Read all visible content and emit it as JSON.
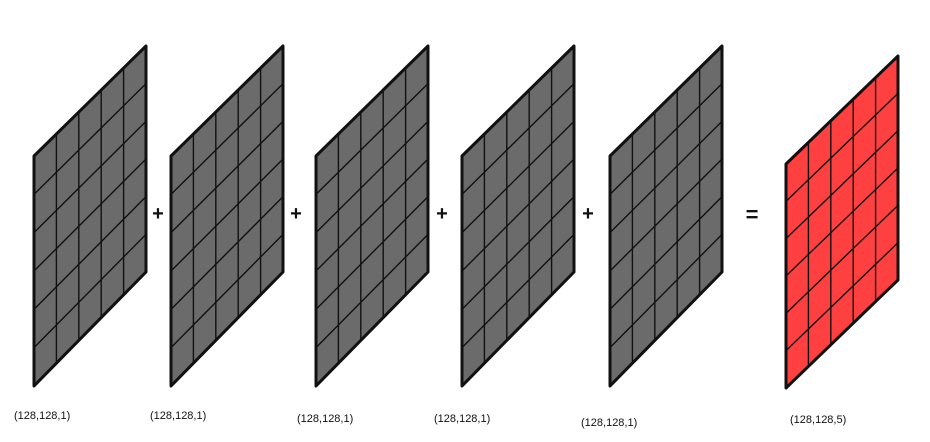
{
  "diagram": {
    "tensors": [
      {
        "shape_label": "(128,128,1)",
        "fill": "#6b6b6b"
      },
      {
        "shape_label": "(128,128,1)",
        "fill": "#6b6b6b"
      },
      {
        "shape_label": "(128,128,1)",
        "fill": "#6b6b6b"
      },
      {
        "shape_label": "(128,128,1)",
        "fill": "#6b6b6b"
      },
      {
        "shape_label": "(128,128,1)",
        "fill": "#6b6b6b"
      }
    ],
    "result": {
      "shape_label": "(128,128,5)",
      "fill": "#ff4040"
    },
    "operators": [
      "+",
      "+",
      "+",
      "+",
      "="
    ],
    "grid": {
      "columns": 5,
      "rows": 6
    },
    "stroke_color": "#111111"
  }
}
